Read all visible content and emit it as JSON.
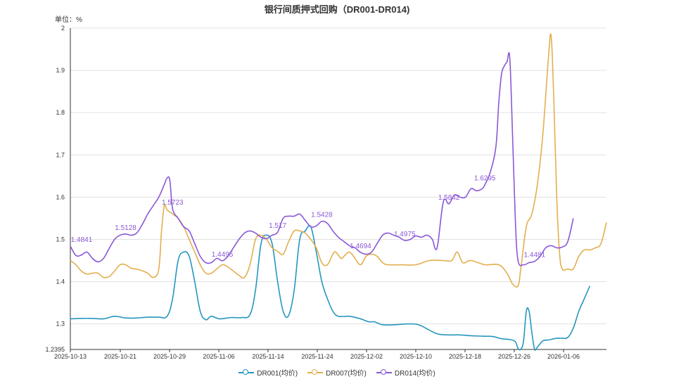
{
  "chart_data": {
    "type": "line",
    "title": "银行间质押式回购（DR001-DR014)",
    "unit_label": "单位：%",
    "x_ticks": [
      "2025-10-13",
      "2025-10-21",
      "2025-10-29",
      "2025-11-06",
      "2025-11-14",
      "2025-11-24",
      "2025-12-02",
      "2025-12-10",
      "2025-12-18",
      "2025-12-26",
      "2026-01-06"
    ],
    "y_ticks": [
      1.2395,
      1.3,
      1.4,
      1.5,
      1.6,
      1.7,
      1.8,
      1.9,
      2
    ],
    "ylim": [
      1.2395,
      2
    ],
    "grid": true,
    "legend_position": "bottom",
    "series": [
      {
        "name": "DR001(均价)",
        "color": "#2596be",
        "values": [
          [
            0,
            1.312
          ],
          [
            4,
            1.313
          ],
          [
            8,
            1.313
          ],
          [
            12,
            1.312
          ],
          [
            16,
            1.318
          ],
          [
            20,
            1.314
          ],
          [
            24,
            1.314
          ],
          [
            28,
            1.316
          ],
          [
            32,
            1.316
          ],
          [
            35,
            1.318
          ],
          [
            37,
            1.36
          ],
          [
            39,
            1.45
          ],
          [
            41,
            1.47
          ],
          [
            43,
            1.46
          ],
          [
            45,
            1.4
          ],
          [
            47,
            1.33
          ],
          [
            49,
            1.31
          ],
          [
            51,
            1.318
          ],
          [
            54,
            1.312
          ],
          [
            58,
            1.315
          ],
          [
            62,
            1.315
          ],
          [
            65,
            1.322
          ],
          [
            67,
            1.38
          ],
          [
            69,
            1.49
          ],
          [
            71,
            1.51
          ],
          [
            73,
            1.49
          ],
          [
            75,
            1.4
          ],
          [
            77,
            1.33
          ],
          [
            79,
            1.32
          ],
          [
            81,
            1.38
          ],
          [
            83,
            1.5
          ],
          [
            85,
            1.52
          ],
          [
            87,
            1.53
          ],
          [
            89,
            1.47
          ],
          [
            91,
            1.4
          ],
          [
            93,
            1.36
          ],
          [
            95,
            1.33
          ],
          [
            97,
            1.318
          ],
          [
            101,
            1.318
          ],
          [
            105,
            1.312
          ],
          [
            108,
            1.305
          ],
          [
            110,
            1.305
          ],
          [
            113,
            1.298
          ],
          [
            117,
            1.298
          ],
          [
            122,
            1.3
          ],
          [
            126,
            1.298
          ],
          [
            130,
            1.285
          ],
          [
            133,
            1.276
          ],
          [
            137,
            1.274
          ],
          [
            141,
            1.274
          ],
          [
            145,
            1.272
          ],
          [
            149,
            1.271
          ],
          [
            153,
            1.27
          ],
          [
            156,
            1.265
          ],
          [
            159,
            1.263
          ],
          [
            161,
            1.258
          ],
          [
            162,
            1.242
          ],
          [
            163,
            1.24
          ],
          [
            164,
            1.26
          ],
          [
            165,
            1.33
          ],
          [
            166,
            1.33
          ],
          [
            167,
            1.28
          ],
          [
            168,
            1.24
          ],
          [
            169,
            1.245
          ],
          [
            171,
            1.26
          ],
          [
            173,
            1.262
          ],
          [
            176,
            1.266
          ],
          [
            178,
            1.266
          ],
          [
            180,
            1.268
          ],
          [
            182,
            1.29
          ],
          [
            184,
            1.33
          ],
          [
            186,
            1.36
          ],
          [
            188,
            1.39
          ]
        ]
      },
      {
        "name": "DR007(均价)",
        "color": "#e3ae4f",
        "values": [
          [
            0,
            1.45
          ],
          [
            2,
            1.44
          ],
          [
            4,
            1.425
          ],
          [
            6,
            1.418
          ],
          [
            8,
            1.42
          ],
          [
            10,
            1.42
          ],
          [
            12,
            1.41
          ],
          [
            14,
            1.412
          ],
          [
            16,
            1.425
          ],
          [
            18,
            1.44
          ],
          [
            20,
            1.44
          ],
          [
            22,
            1.432
          ],
          [
            25,
            1.428
          ],
          [
            28,
            1.42
          ],
          [
            30,
            1.41
          ],
          [
            32,
            1.43
          ],
          [
            33,
            1.52
          ],
          [
            34,
            1.58
          ],
          [
            35,
            1.57
          ],
          [
            37,
            1.56
          ],
          [
            39,
            1.55
          ],
          [
            41,
            1.53
          ],
          [
            43,
            1.5
          ],
          [
            45,
            1.47
          ],
          [
            47,
            1.44
          ],
          [
            49,
            1.42
          ],
          [
            51,
            1.42
          ],
          [
            53,
            1.43
          ],
          [
            55,
            1.44
          ],
          [
            57,
            1.435
          ],
          [
            59,
            1.425
          ],
          [
            61,
            1.415
          ],
          [
            63,
            1.41
          ],
          [
            65,
            1.44
          ],
          [
            67,
            1.5
          ],
          [
            69,
            1.51
          ],
          [
            71,
            1.5
          ],
          [
            73,
            1.48
          ],
          [
            75,
            1.472
          ],
          [
            77,
            1.465
          ],
          [
            79,
            1.495
          ],
          [
            81,
            1.52
          ],
          [
            83,
            1.52
          ],
          [
            85,
            1.515
          ],
          [
            87,
            1.5
          ],
          [
            89,
            1.48
          ],
          [
            91,
            1.445
          ],
          [
            93,
            1.44
          ],
          [
            95,
            1.465
          ],
          [
            96,
            1.47
          ],
          [
            98,
            1.455
          ],
          [
            99,
            1.46
          ],
          [
            101,
            1.47
          ],
          [
            103,
            1.455
          ],
          [
            105,
            1.44
          ],
          [
            107,
            1.46
          ],
          [
            109,
            1.465
          ],
          [
            111,
            1.46
          ],
          [
            113,
            1.445
          ],
          [
            115,
            1.44
          ],
          [
            120,
            1.44
          ],
          [
            125,
            1.44
          ],
          [
            130,
            1.45
          ],
          [
            135,
            1.45
          ],
          [
            138,
            1.45
          ],
          [
            140,
            1.47
          ],
          [
            142,
            1.445
          ],
          [
            145,
            1.45
          ],
          [
            150,
            1.44
          ],
          [
            155,
            1.44
          ],
          [
            158,
            1.42
          ],
          [
            160,
            1.395
          ],
          [
            162,
            1.39
          ],
          [
            163,
            1.43
          ],
          [
            165,
            1.53
          ],
          [
            167,
            1.56
          ],
          [
            169,
            1.63
          ],
          [
            171,
            1.75
          ],
          [
            173,
            1.93
          ],
          [
            174,
            1.98
          ],
          [
            175,
            1.82
          ],
          [
            176,
            1.6
          ],
          [
            177,
            1.47
          ],
          [
            178,
            1.43
          ],
          [
            180,
            1.43
          ],
          [
            182,
            1.43
          ],
          [
            184,
            1.46
          ],
          [
            186,
            1.475
          ],
          [
            188,
            1.475
          ],
          [
            190,
            1.48
          ],
          [
            192,
            1.49
          ],
          [
            194,
            1.54
          ]
        ]
      },
      {
        "name": "DR014(均价)",
        "color": "#8a58d6",
        "values": [
          [
            0,
            1.4841
          ],
          [
            2,
            1.462
          ],
          [
            4,
            1.463
          ],
          [
            6,
            1.47
          ],
          [
            8,
            1.455
          ],
          [
            10,
            1.447
          ],
          [
            12,
            1.455
          ],
          [
            14,
            1.478
          ],
          [
            16,
            1.5
          ],
          [
            18,
            1.51
          ],
          [
            20,
            1.5128
          ],
          [
            22,
            1.51
          ],
          [
            24,
            1.515
          ],
          [
            26,
            1.535
          ],
          [
            28,
            1.56
          ],
          [
            30,
            1.58
          ],
          [
            32,
            1.6
          ],
          [
            34,
            1.63
          ],
          [
            35,
            1.645
          ],
          [
            36,
            1.64
          ],
          [
            37,
            1.5723
          ],
          [
            39,
            1.55
          ],
          [
            41,
            1.53
          ],
          [
            43,
            1.52
          ],
          [
            45,
            1.49
          ],
          [
            47,
            1.46
          ],
          [
            49,
            1.445
          ],
          [
            51,
            1.445
          ],
          [
            53,
            1.455
          ],
          [
            55,
            1.4495
          ],
          [
            57,
            1.46
          ],
          [
            59,
            1.48
          ],
          [
            61,
            1.5
          ],
          [
            63,
            1.515
          ],
          [
            65,
            1.52
          ],
          [
            67,
            1.515
          ],
          [
            69,
            1.505
          ],
          [
            71,
            1.502
          ],
          [
            73,
            1.51
          ],
          [
            75,
            1.517
          ],
          [
            77,
            1.55
          ],
          [
            79,
            1.555
          ],
          [
            81,
            1.555
          ],
          [
            83,
            1.56
          ],
          [
            85,
            1.545
          ],
          [
            87,
            1.53
          ],
          [
            89,
            1.532
          ],
          [
            91,
            1.5428
          ],
          [
            93,
            1.538
          ],
          [
            95,
            1.52
          ],
          [
            97,
            1.505
          ],
          [
            99,
            1.495
          ],
          [
            101,
            1.485
          ],
          [
            103,
            1.48
          ],
          [
            105,
            1.4694
          ],
          [
            107,
            1.465
          ],
          [
            109,
            1.47
          ],
          [
            111,
            1.49
          ],
          [
            113,
            1.51
          ],
          [
            115,
            1.515
          ],
          [
            117,
            1.51
          ],
          [
            119,
            1.505
          ],
          [
            121,
            1.4975
          ],
          [
            123,
            1.5
          ],
          [
            125,
            1.508
          ],
          [
            127,
            1.505
          ],
          [
            129,
            1.51
          ],
          [
            131,
            1.5
          ],
          [
            132,
            1.478
          ],
          [
            133,
            1.49
          ],
          [
            135,
            1.59
          ],
          [
            137,
            1.5842
          ],
          [
            139,
            1.605
          ],
          [
            141,
            1.6
          ],
          [
            143,
            1.6
          ],
          [
            145,
            1.62
          ],
          [
            147,
            1.615
          ],
          [
            149,
            1.62
          ],
          [
            150,
            1.6295
          ],
          [
            152,
            1.66
          ],
          [
            154,
            1.72
          ],
          [
            155,
            1.82
          ],
          [
            156,
            1.89
          ],
          [
            157,
            1.91
          ],
          [
            158,
            1.92
          ],
          [
            159,
            1.93
          ],
          [
            160,
            1.75
          ],
          [
            161,
            1.55
          ],
          [
            162,
            1.45
          ],
          [
            164,
            1.44
          ],
          [
            166,
            1.445
          ],
          [
            168,
            1.4481
          ],
          [
            170,
            1.46
          ],
          [
            172,
            1.48
          ],
          [
            174,
            1.485
          ],
          [
            176,
            1.48
          ],
          [
            178,
            1.482
          ],
          [
            180,
            1.495
          ],
          [
            182,
            1.55
          ]
        ]
      }
    ],
    "data_labels": [
      {
        "series": "DR014(均价)",
        "text": "1.4841",
        "at": 0
      },
      {
        "series": "DR014(均价)",
        "text": "1.5128",
        "at": 20
      },
      {
        "series": "DR014(均价)",
        "text": "1.5723",
        "at": 37
      },
      {
        "series": "DR014(均价)",
        "text": "1.4495",
        "at": 55
      },
      {
        "series": "DR014(均价)",
        "text": "1.517",
        "at": 75
      },
      {
        "series": "DR014(均价)",
        "text": "1.5428",
        "at": 91
      },
      {
        "series": "DR014(均价)",
        "text": "1.4694",
        "at": 105
      },
      {
        "series": "DR014(均价)",
        "text": "1.4975",
        "at": 121
      },
      {
        "series": "DR014(均价)",
        "text": "1.5842",
        "at": 137
      },
      {
        "series": "DR014(均价)",
        "text": "1.6295",
        "at": 150
      },
      {
        "series": "DR014(均价)",
        "text": "1.4481",
        "at": 168
      }
    ]
  }
}
